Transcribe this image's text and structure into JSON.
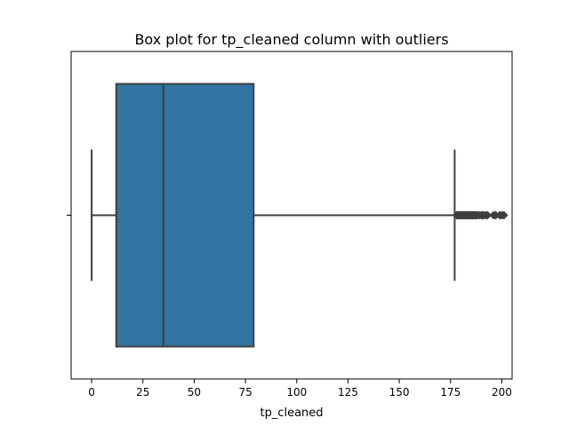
{
  "chart_data": {
    "type": "box",
    "title": "Box plot for tp_cleaned column with outliers",
    "xlabel": "tp_cleaned",
    "ylabel": "",
    "orientation": "horizontal",
    "xlim": [
      -10,
      205
    ],
    "xticks": [
      0,
      25,
      50,
      75,
      100,
      125,
      150,
      175,
      200
    ],
    "xtick_labels": [
      "0",
      "25",
      "50",
      "75",
      "100",
      "125",
      "150",
      "175",
      "200"
    ],
    "ytick_labels": [
      ""
    ],
    "grid": false,
    "box": {
      "whisker_low": 0,
      "q1": 12,
      "median": 35,
      "q3": 79,
      "whisker_high": 177
    },
    "outliers": [
      178,
      178.5,
      179,
      179.5,
      180,
      180.5,
      181,
      181.5,
      182,
      182.5,
      183,
      183.5,
      184,
      184.5,
      185,
      185.5,
      186,
      186.5,
      187,
      187.5,
      188,
      189,
      190,
      190.5,
      191,
      192,
      193,
      196,
      197,
      199,
      200,
      201
    ],
    "colors": {
      "box_fill": "#3274a1",
      "line": "#3f3f3f",
      "axes": "#000000"
    }
  }
}
